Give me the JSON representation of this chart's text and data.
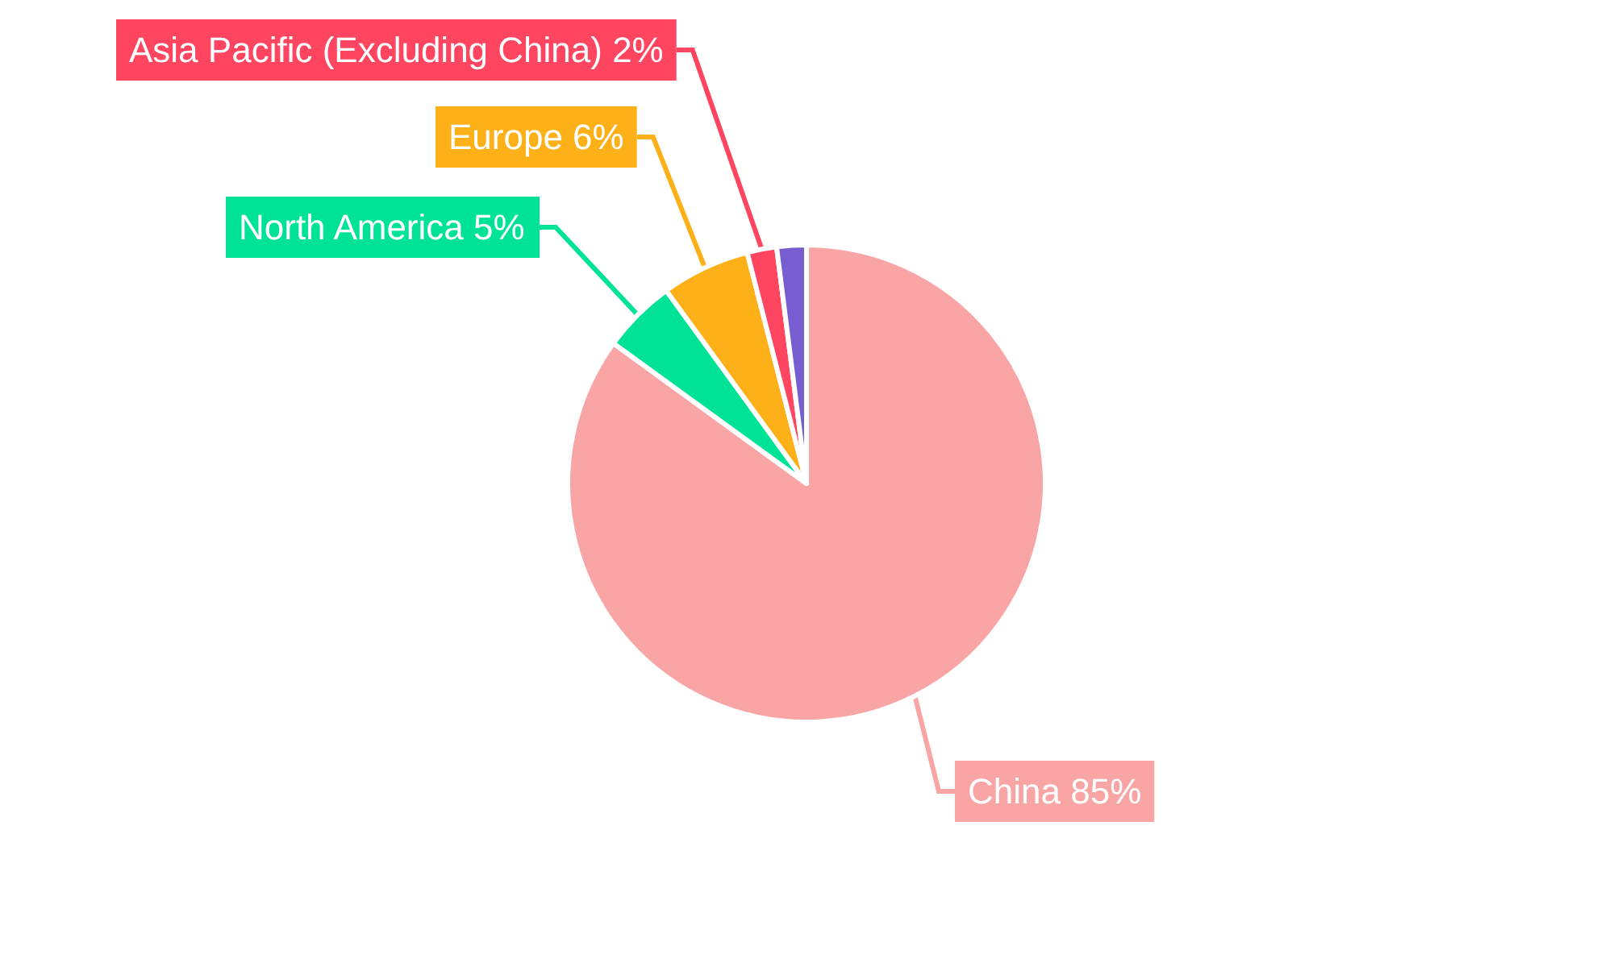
{
  "chart_data": {
    "type": "pie",
    "categories": [
      "China",
      "North America",
      "Europe",
      "Asia Pacific (Excluding China)",
      null
    ],
    "values": [
      85,
      5,
      6,
      2,
      2
    ],
    "value_labels": [
      "85%",
      "5%",
      "6%",
      "2%",
      null
    ],
    "colors": [
      "#f9a5a5",
      "#00e396",
      "#feb019",
      "#ff4560",
      "#775dd0"
    ],
    "legend": false
  }
}
